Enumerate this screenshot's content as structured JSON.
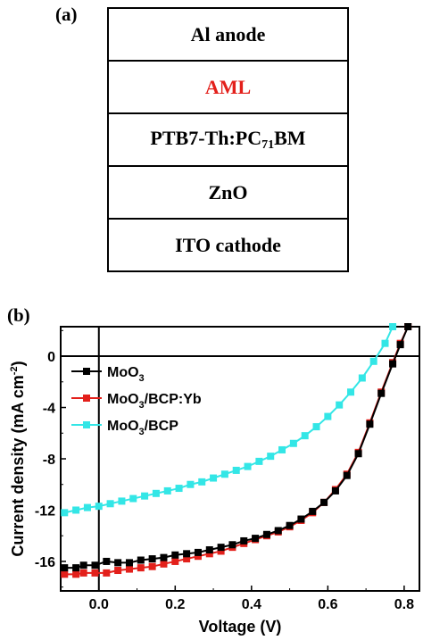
{
  "panel_a": {
    "label": "(a)",
    "layers": [
      {
        "text": "Al anode",
        "color": "#000000"
      },
      {
        "text": "AML",
        "color": "#e3201b"
      },
      {
        "text": "PTB7-Th:PC",
        "sub": "71",
        "tail": "BM",
        "color": "#000000"
      },
      {
        "text": "ZnO",
        "color": "#000000"
      },
      {
        "text": "ITO cathode",
        "color": "#000000"
      }
    ]
  },
  "panel_b": {
    "label": "(b)"
  },
  "chart_data": {
    "type": "line",
    "xlabel": "Voltage (V)",
    "ylabel": "Current density (mA cm",
    "ylabel_sup": "-2",
    "ylabel_tail": ")",
    "xlim": [
      -0.1,
      0.84
    ],
    "ylim": [
      -18.3,
      2.3
    ],
    "xticks": [
      0.0,
      0.2,
      0.4,
      0.6,
      0.8
    ],
    "xtick_labels": [
      "0.0",
      "0.2",
      "0.4",
      "0.6",
      "0.8"
    ],
    "yticks": [
      0,
      -4,
      -8,
      -12,
      -16
    ],
    "ytick_labels": [
      "0",
      "-4",
      "-8",
      "-12",
      "-16"
    ],
    "zero_lines": true,
    "legend_position": "upper-left",
    "series": [
      {
        "name": "MoO3",
        "name_base": "MoO",
        "name_sub": "3",
        "name_tail": "",
        "color": "#000000",
        "marker": "square",
        "x": [
          -0.09,
          -0.06,
          -0.04,
          -0.01,
          0.02,
          0.05,
          0.08,
          0.11,
          0.14,
          0.17,
          0.2,
          0.23,
          0.26,
          0.29,
          0.32,
          0.35,
          0.38,
          0.41,
          0.44,
          0.47,
          0.5,
          0.53,
          0.56,
          0.59,
          0.62,
          0.65,
          0.68,
          0.71,
          0.74,
          0.77,
          0.79,
          0.81
        ],
        "y": [
          -16.5,
          -16.5,
          -16.3,
          -16.3,
          -16.0,
          -16.1,
          -16.1,
          -15.9,
          -15.8,
          -15.7,
          -15.5,
          -15.4,
          -15.3,
          -15.1,
          -14.9,
          -14.7,
          -14.4,
          -14.2,
          -13.9,
          -13.6,
          -13.2,
          -12.7,
          -12.1,
          -11.4,
          -10.5,
          -9.3,
          -7.6,
          -5.3,
          -2.9,
          -0.6,
          0.9,
          2.3
        ]
      },
      {
        "name": "MoO3/BCP:Yb",
        "name_base": "MoO",
        "name_sub": "3",
        "name_tail": "/BCP:Yb",
        "color": "#e3201b",
        "marker": "square",
        "x": [
          -0.09,
          -0.06,
          -0.04,
          -0.01,
          0.02,
          0.05,
          0.08,
          0.11,
          0.14,
          0.17,
          0.2,
          0.23,
          0.26,
          0.29,
          0.32,
          0.35,
          0.38,
          0.41,
          0.44,
          0.47,
          0.5,
          0.53,
          0.56,
          0.59,
          0.62,
          0.65,
          0.68,
          0.71,
          0.74,
          0.77,
          0.79,
          0.81
        ],
        "y": [
          -17.0,
          -17.0,
          -16.9,
          -16.9,
          -16.9,
          -16.7,
          -16.6,
          -16.5,
          -16.4,
          -16.2,
          -16.0,
          -15.8,
          -15.6,
          -15.4,
          -15.2,
          -14.9,
          -14.6,
          -14.3,
          -14.0,
          -13.7,
          -13.3,
          -12.8,
          -12.2,
          -11.4,
          -10.4,
          -9.2,
          -7.5,
          -5.2,
          -2.8,
          -0.5,
          1.0,
          2.3
        ]
      },
      {
        "name": "MoO3/BCP",
        "name_base": "MoO",
        "name_sub": "3",
        "name_tail": "/BCP",
        "color": "#33e6e6",
        "marker": "square",
        "x": [
          -0.09,
          -0.06,
          -0.03,
          0.0,
          0.03,
          0.06,
          0.09,
          0.12,
          0.15,
          0.18,
          0.21,
          0.24,
          0.27,
          0.3,
          0.33,
          0.36,
          0.39,
          0.42,
          0.45,
          0.48,
          0.51,
          0.54,
          0.57,
          0.6,
          0.63,
          0.66,
          0.69,
          0.72,
          0.75,
          0.77
        ],
        "y": [
          -12.2,
          -12.0,
          -11.8,
          -11.7,
          -11.5,
          -11.3,
          -11.1,
          -10.9,
          -10.7,
          -10.5,
          -10.3,
          -10.0,
          -9.8,
          -9.5,
          -9.2,
          -8.9,
          -8.6,
          -8.2,
          -7.8,
          -7.3,
          -6.8,
          -6.2,
          -5.5,
          -4.7,
          -3.8,
          -2.8,
          -1.7,
          -0.4,
          1.0,
          2.3
        ]
      }
    ]
  }
}
